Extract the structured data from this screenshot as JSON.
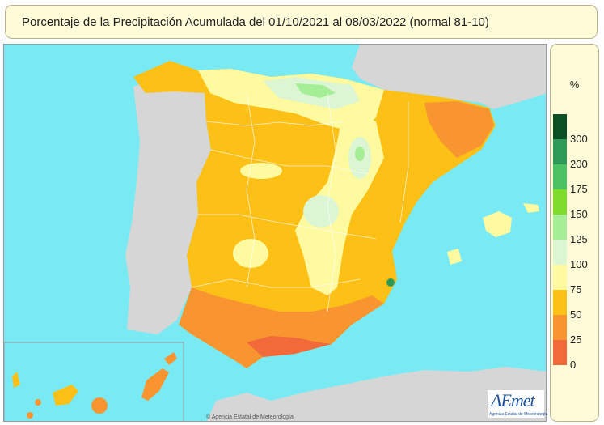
{
  "title": "Porcentaje de la Precipitación Acumulada del 01/10/2021 al 08/03/2022 (normal 81-10)",
  "legend": {
    "unit": "%",
    "classes": [
      {
        "label": "300",
        "color": "#0b4f27"
      },
      {
        "label": "200",
        "color": "#2f9a57"
      },
      {
        "label": "175",
        "color": "#4cc264"
      },
      {
        "label": "150",
        "color": "#7edb2c"
      },
      {
        "label": "125",
        "color": "#a6ee96"
      },
      {
        "label": "100",
        "color": "#dcf5d2"
      },
      {
        "label": "75",
        "color": "#fffaa0"
      },
      {
        "label": "50",
        "color": "#fcc017"
      },
      {
        "label": "25",
        "color": "#f89530"
      },
      {
        "label": "0",
        "color": "#f26a3a"
      }
    ]
  },
  "credit": "© Agencia Estatal de Meteorología",
  "logo": {
    "word": "AEmet",
    "subtitle": "Agencia Estatal de Meteorología"
  },
  "colors": {
    "sea": "#79eaf4",
    "land_outside": "#d6d6d6",
    "frame_bg": "#fffbd8"
  }
}
